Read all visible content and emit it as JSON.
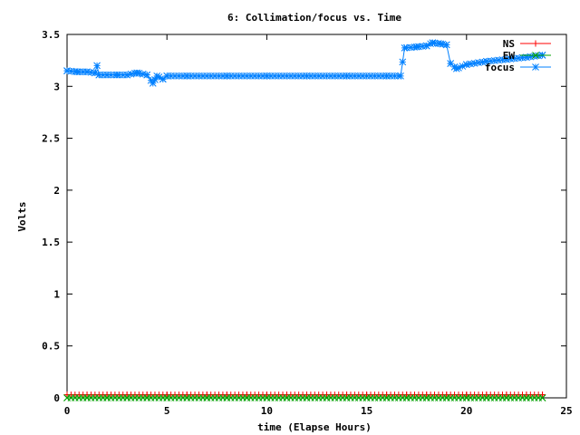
{
  "chart_data": {
    "type": "line",
    "title": "6: Collimation/focus vs. Time",
    "xlabel": "time (Elapse Hours)",
    "ylabel": "Volts",
    "xlim": [
      0,
      25
    ],
    "ylim": [
      0,
      3.5
    ],
    "x_ticks": [
      0,
      5,
      10,
      15,
      20,
      25
    ],
    "y_ticks": [
      0,
      0.5,
      1,
      1.5,
      2,
      2.5,
      3,
      3.5
    ],
    "x_tick_labels": [
      "0",
      "5",
      "10",
      "15",
      "20",
      "25"
    ],
    "y_tick_labels": [
      "0",
      "0.5",
      "1",
      "1.5",
      "2",
      "2.5",
      "3",
      "3.5"
    ],
    "grid": false,
    "legend_position": "top-right",
    "series": [
      {
        "name": "NS",
        "color": "#ff0000",
        "marker": "plus",
        "x": [
          0,
          1,
          2,
          3,
          4,
          5,
          6,
          7,
          8,
          9,
          10,
          11,
          12,
          13,
          14,
          15,
          16,
          17,
          18,
          19,
          20,
          21,
          22,
          23,
          23.8
        ],
        "y": [
          0.03,
          0.03,
          0.03,
          0.03,
          0.03,
          0.03,
          0.03,
          0.03,
          0.03,
          0.03,
          0.03,
          0.03,
          0.03,
          0.03,
          0.03,
          0.03,
          0.03,
          0.03,
          0.03,
          0.03,
          0.03,
          0.03,
          0.03,
          0.03,
          0.03
        ]
      },
      {
        "name": "EW",
        "color": "#00a000",
        "marker": "x",
        "x": [
          0,
          1,
          2,
          3,
          4,
          5,
          6,
          7,
          8,
          9,
          10,
          11,
          12,
          13,
          14,
          15,
          16,
          17,
          18,
          19,
          20,
          21,
          22,
          23,
          23.8
        ],
        "y": [
          0.0,
          0.0,
          0.0,
          0.0,
          0.0,
          0.0,
          0.0,
          0.0,
          0.0,
          0.0,
          0.0,
          0.0,
          0.0,
          0.0,
          0.0,
          0.0,
          0.0,
          0.0,
          0.0,
          0.0,
          0.0,
          0.0,
          0.0,
          0.0,
          0.0
        ]
      },
      {
        "name": "focus",
        "color": "#0080ff",
        "marker": "star",
        "x": [
          0,
          0.5,
          1.0,
          1.4,
          1.5,
          1.6,
          2.0,
          2.5,
          3.0,
          3.5,
          4.0,
          4.3,
          4.5,
          4.8,
          5.0,
          6,
          8,
          10,
          12,
          14,
          16,
          16.7,
          16.9,
          17.5,
          18.0,
          18.3,
          18.7,
          19.0,
          19.2,
          19.5,
          20,
          21,
          22,
          23,
          23.8
        ],
        "y": [
          3.15,
          3.14,
          3.14,
          3.13,
          3.2,
          3.11,
          3.11,
          3.11,
          3.11,
          3.13,
          3.11,
          3.03,
          3.1,
          3.07,
          3.1,
          3.1,
          3.1,
          3.1,
          3.1,
          3.1,
          3.1,
          3.1,
          3.37,
          3.38,
          3.39,
          3.42,
          3.41,
          3.4,
          3.22,
          3.17,
          3.21,
          3.24,
          3.26,
          3.28,
          3.3
        ]
      }
    ]
  }
}
